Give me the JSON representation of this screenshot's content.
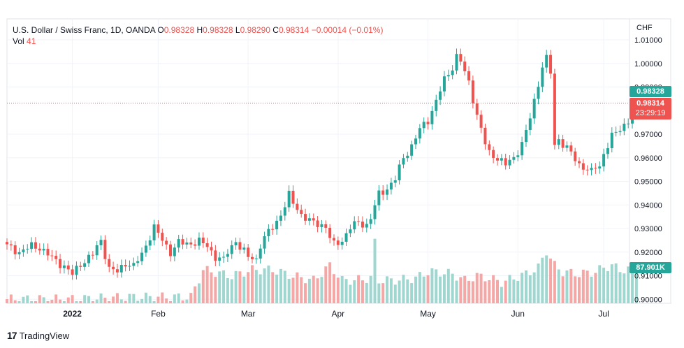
{
  "legend": {
    "symbol": "U.S. Dollar / Swiss Franc, 1D, OANDA",
    "o_label": "O",
    "o_value": "0.98328",
    "h_label": "H",
    "h_value": "0.98328",
    "l_label": "L",
    "l_value": "0.98290",
    "c_label": "C",
    "c_value": "0.98314",
    "change": "−0.00014 (−0.01%)",
    "vol_label": "Vol",
    "vol_value": "41"
  },
  "currency_label": "CHF",
  "tags": {
    "high": "0.98328",
    "last_price": "0.98314",
    "countdown": "23:29:19",
    "volume": "87.901K"
  },
  "branding": {
    "logo": "17",
    "name": "TradingView"
  },
  "colors": {
    "up": "#26a69a",
    "down": "#ef5350",
    "vol_up": "#9fd7d0",
    "vol_down": "#f5a7a6",
    "grid": "#f0f3fa",
    "axis_text": "#131722"
  },
  "chart_data": {
    "type": "candlestick",
    "title": "U.S. Dollar / Swiss Franc, 1D, OANDA",
    "y_axis": {
      "ticks": [
        "1.01000",
        "1.00000",
        "0.99000",
        "0.97000",
        "0.96000",
        "0.95000",
        "0.94000",
        "0.93000",
        "0.92000",
        "0.91000",
        "0.90000"
      ],
      "tick_values": [
        1.01,
        1.0,
        0.99,
        0.97,
        0.96,
        0.95,
        0.94,
        0.93,
        0.92,
        0.91,
        0.9
      ],
      "range": [
        0.9,
        1.0105
      ],
      "unit": "CHF"
    },
    "x_axis": {
      "labels": [
        "2022",
        "Feb",
        "Mar",
        "Apr",
        "May",
        "Jun",
        "Jul"
      ],
      "label_index": [
        16,
        37,
        59,
        81,
        103,
        125,
        146
      ]
    },
    "grid": true,
    "last_price_line": 0.98314,
    "volume_scale": [
      0,
      28
    ],
    "anchors": [
      [
        0,
        0.9225
      ],
      [
        3,
        0.92
      ],
      [
        6,
        0.9225
      ],
      [
        8,
        0.922
      ],
      [
        11,
        0.9175
      ],
      [
        14,
        0.914
      ],
      [
        16,
        0.9105
      ],
      [
        18,
        0.915
      ],
      [
        21,
        0.919
      ],
      [
        23,
        0.925
      ],
      [
        25,
        0.913
      ],
      [
        27,
        0.9115
      ],
      [
        29,
        0.9155
      ],
      [
        31,
        0.914
      ],
      [
        33,
        0.919
      ],
      [
        34,
        0.923
      ],
      [
        36,
        0.9305
      ],
      [
        38,
        0.925
      ],
      [
        40,
        0.92
      ],
      [
        42,
        0.924
      ],
      [
        44,
        0.9235
      ],
      [
        47,
        0.9245
      ],
      [
        49,
        0.9225
      ],
      [
        51,
        0.918
      ],
      [
        53,
        0.9165
      ],
      [
        54,
        0.92
      ],
      [
        56,
        0.925
      ],
      [
        57,
        0.922
      ],
      [
        59,
        0.918
      ],
      [
        61,
        0.917
      ],
      [
        62,
        0.923
      ],
      [
        64,
        0.9285
      ],
      [
        66,
        0.933
      ],
      [
        68,
        0.9395
      ],
      [
        69,
        0.944
      ],
      [
        70,
        0.941
      ],
      [
        72,
        0.936
      ],
      [
        74,
        0.933
      ],
      [
        76,
        0.932
      ],
      [
        78,
        0.931
      ],
      [
        79,
        0.926
      ],
      [
        80,
        0.923
      ],
      [
        82,
        0.925
      ],
      [
        84,
        0.9305
      ],
      [
        86,
        0.9325
      ],
      [
        88,
        0.9315
      ],
      [
        89,
        0.9345
      ],
      [
        91,
        0.9445
      ],
      [
        93,
        0.947
      ],
      [
        95,
        0.951
      ],
      [
        97,
        0.96
      ],
      [
        99,
        0.965
      ],
      [
        101,
        0.972
      ],
      [
        103,
        0.976
      ],
      [
        105,
        0.984
      ],
      [
        107,
        0.993
      ],
      [
        109,
        0.9985
      ],
      [
        110,
        1.003
      ],
      [
        111,
        1.001
      ],
      [
        112,
        0.996
      ],
      [
        113,
        0.992
      ],
      [
        114,
        0.985
      ],
      [
        115,
        0.978
      ],
      [
        116,
        0.972
      ],
      [
        117,
        0.966
      ],
      [
        118,
        0.962
      ],
      [
        120,
        0.96
      ],
      [
        121,
        0.9585
      ],
      [
        122,
        0.957
      ],
      [
        124,
        0.96
      ],
      [
        125,
        0.963
      ],
      [
        126,
        0.966
      ],
      [
        127,
        0.971
      ],
      [
        128,
        0.977
      ],
      [
        129,
        0.984
      ],
      [
        130,
        0.9915
      ],
      [
        131,
        0.999
      ],
      [
        132,
        1.002
      ],
      [
        133,
        0.996
      ],
      [
        134,
        0.965
      ],
      [
        135,
        0.968
      ],
      [
        137,
        0.964
      ],
      [
        138,
        0.962
      ],
      [
        139,
        0.959
      ],
      [
        140,
        0.957
      ],
      [
        141,
        0.9565
      ],
      [
        142,
        0.955
      ],
      [
        143,
        0.954
      ],
      [
        144,
        0.956
      ],
      [
        145,
        0.956
      ],
      [
        146,
        0.962
      ],
      [
        148,
        0.969
      ],
      [
        150,
        0.972
      ],
      [
        152,
        0.976
      ],
      [
        153,
        0.98
      ],
      [
        154,
        0.98314
      ]
    ],
    "volume_levels": [
      [
        0,
        2
      ],
      [
        16,
        2
      ],
      [
        30,
        3
      ],
      [
        45,
        3
      ],
      [
        48,
        16
      ],
      [
        55,
        13
      ],
      [
        60,
        16
      ],
      [
        65,
        16
      ],
      [
        70,
        13
      ],
      [
        75,
        11
      ],
      [
        79,
        18
      ],
      [
        82,
        11
      ],
      [
        85,
        11
      ],
      [
        89,
        12
      ],
      [
        90,
        29
      ],
      [
        91,
        11
      ],
      [
        95,
        11
      ],
      [
        100,
        12
      ],
      [
        103,
        15
      ],
      [
        105,
        15
      ],
      [
        109,
        14
      ],
      [
        112,
        11
      ],
      [
        115,
        13
      ],
      [
        118,
        12
      ],
      [
        121,
        10
      ],
      [
        124,
        12
      ],
      [
        127,
        14
      ],
      [
        130,
        17
      ],
      [
        132,
        25
      ],
      [
        134,
        18
      ],
      [
        136,
        15
      ],
      [
        140,
        14
      ],
      [
        144,
        15
      ],
      [
        146,
        17
      ],
      [
        148,
        18
      ],
      [
        150,
        16
      ],
      [
        154,
        16
      ]
    ]
  }
}
